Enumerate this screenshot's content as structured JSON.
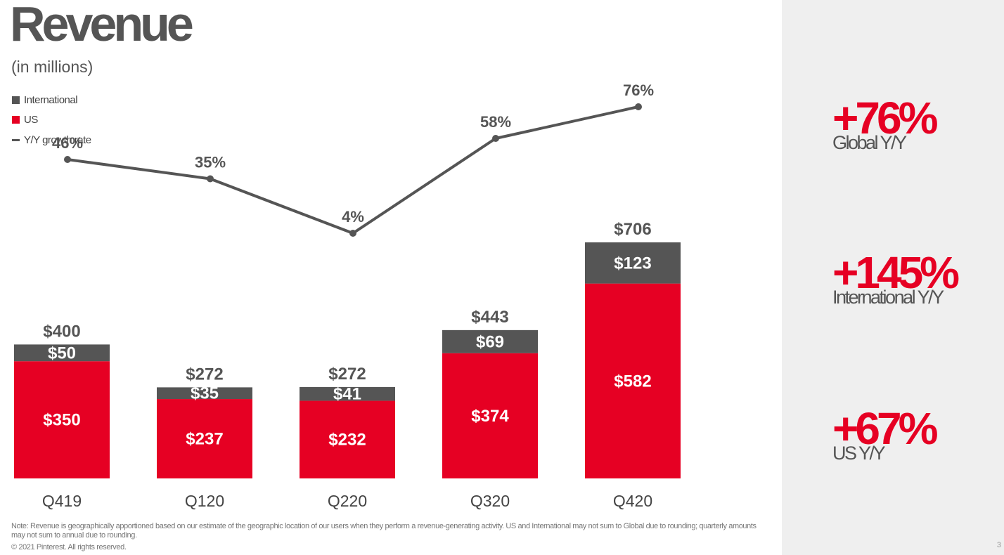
{
  "title": "Revenue",
  "subtitle": "(in millions)",
  "legend": {
    "international": "International",
    "us": "US",
    "growth": "Y/Y growth rate"
  },
  "colors": {
    "us": "#e60023",
    "international": "#555555",
    "growth_line": "#555555"
  },
  "chart_data": {
    "type": "bar",
    "stacked": true,
    "categories": [
      "Q419",
      "Q120",
      "Q220",
      "Q320",
      "Q420"
    ],
    "series": [
      {
        "name": "US",
        "values": [
          350,
          237,
          232,
          374,
          582
        ],
        "labels": [
          "$350",
          "$237",
          "$232",
          "$374",
          "$582"
        ]
      },
      {
        "name": "International",
        "values": [
          50,
          35,
          41,
          69,
          123
        ],
        "labels": [
          "$50",
          "$35",
          "$41",
          "$69",
          "$123"
        ]
      }
    ],
    "totals": [
      400,
      272,
      272,
      443,
      706
    ],
    "total_labels": [
      "$400",
      "$272",
      "$272",
      "$443",
      "$706"
    ],
    "line_series": {
      "name": "Y/Y growth rate",
      "values": [
        46,
        35,
        4,
        58,
        76
      ],
      "labels": [
        "46%",
        "35%",
        "4%",
        "58%",
        "76%"
      ]
    },
    "title": "Revenue",
    "ylabel": "",
    "grid": false,
    "legend_position": "top-left"
  },
  "note": "Note: Revenue is geographically apportioned based on our estimate of the geographic location of our users when they perform a revenue-generating activity. US and International may not sum to Global due to rounding; quarterly amounts may not sum to annual due to rounding.",
  "copyright": "© 2021 Pinterest. All rights reserved.",
  "stats": [
    {
      "value": "+76%",
      "label": "Global Y/Y"
    },
    {
      "value": "+145%",
      "label": "International Y/Y"
    },
    {
      "value": "+67%",
      "label": "US Y/Y"
    }
  ],
  "page_number": "3"
}
